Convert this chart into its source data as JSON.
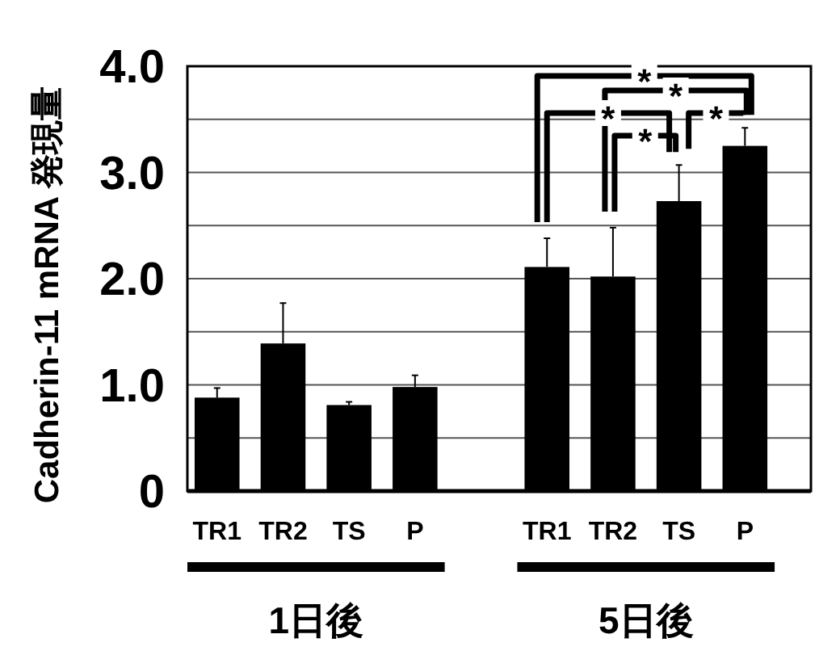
{
  "chart_data": {
    "type": "bar",
    "ylabel": "Cadherin-11 mRNA 発現量",
    "categories": [
      "TR1",
      "TR2",
      "TS",
      "P",
      null,
      "TR1",
      "TR2",
      "TS",
      "P"
    ],
    "values": [
      0.88,
      1.39,
      0.81,
      0.98,
      null,
      2.11,
      2.02,
      2.73,
      3.25
    ],
    "errors": [
      [
        0.88,
        0.97
      ],
      [
        1.39,
        1.77
      ],
      [
        0.81,
        0.84
      ],
      [
        0.98,
        1.09
      ],
      null,
      [
        2.11,
        2.38
      ],
      [
        2.02,
        2.48
      ],
      [
        2.73,
        3.07
      ],
      [
        3.25,
        3.42
      ]
    ],
    "color": "#000000",
    "ylim": [
      0,
      4
    ],
    "yticks": [
      0,
      {
        "value": 0.5,
        "label": null
      },
      {
        "value": 1,
        "label": "1.0"
      },
      {
        "value": 1.5,
        "label": null
      },
      {
        "value": 2,
        "label": "2.0"
      },
      {
        "value": 2.5,
        "label": null
      },
      {
        "value": 3,
        "label": "3.0"
      },
      {
        "value": 3.5,
        "label": null
      },
      {
        "value": 4,
        "label": "4.0"
      }
    ],
    "grid": "y",
    "annotations": [
      "*",
      "*",
      "*",
      "*",
      "*",
      "1日後",
      "5日後"
    ]
  }
}
